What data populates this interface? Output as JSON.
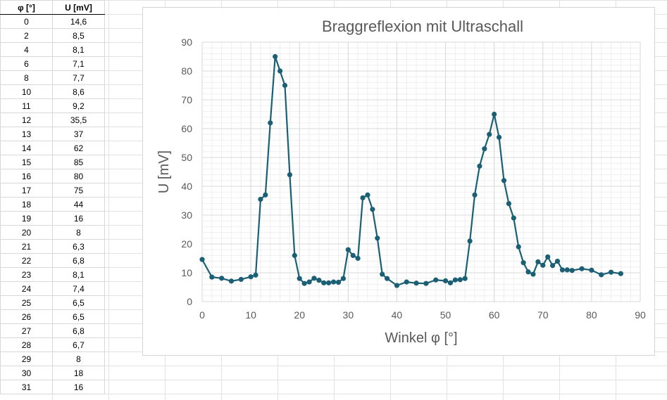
{
  "table": {
    "headers": [
      "φ [°]",
      "U [mV]"
    ],
    "rows": [
      [
        "0",
        "14,6"
      ],
      [
        "2",
        "8,5"
      ],
      [
        "4",
        "8,1"
      ],
      [
        "6",
        "7,1"
      ],
      [
        "8",
        "7,7"
      ],
      [
        "10",
        "8,6"
      ],
      [
        "11",
        "9,2"
      ],
      [
        "12",
        "35,5"
      ],
      [
        "13",
        "37"
      ],
      [
        "14",
        "62"
      ],
      [
        "15",
        "85"
      ],
      [
        "16",
        "80"
      ],
      [
        "17",
        "75"
      ],
      [
        "18",
        "44"
      ],
      [
        "19",
        "16"
      ],
      [
        "20",
        "8"
      ],
      [
        "21",
        "6,3"
      ],
      [
        "22",
        "6,8"
      ],
      [
        "23",
        "8,1"
      ],
      [
        "24",
        "7,4"
      ],
      [
        "25",
        "6,5"
      ],
      [
        "26",
        "6,5"
      ],
      [
        "27",
        "6,8"
      ],
      [
        "28",
        "6,7"
      ],
      [
        "29",
        "8"
      ],
      [
        "30",
        "18"
      ],
      [
        "31",
        "16"
      ]
    ]
  },
  "chart_data": {
    "type": "scatter",
    "mode": "lines+markers",
    "title": "Braggreflexion mit Ultraschall",
    "xlabel": "Winkel φ [°]",
    "ylabel": "U [mV]",
    "xlim": [
      0,
      90
    ],
    "ylim": [
      0,
      90
    ],
    "xticks": [
      0,
      10,
      20,
      30,
      40,
      50,
      60,
      70,
      80,
      90
    ],
    "yticks": [
      0,
      10,
      20,
      30,
      40,
      50,
      60,
      70,
      80,
      90
    ],
    "grid": true,
    "minor_grid": true,
    "color": "#1b5f75",
    "series": [
      {
        "x": [
          0,
          2,
          4,
          6,
          8,
          10,
          11,
          12,
          13,
          14,
          15,
          16,
          17,
          18,
          19,
          20,
          21,
          22,
          23,
          24,
          25,
          26,
          27,
          28,
          29,
          30,
          31,
          32,
          33,
          34,
          35,
          36,
          37,
          38,
          40,
          42,
          44,
          46,
          48,
          50,
          51,
          52,
          53,
          54,
          55,
          56,
          57,
          58,
          59,
          60,
          61,
          62,
          63,
          64,
          65,
          66,
          67,
          68,
          69,
          70,
          71,
          72,
          73,
          74,
          75,
          76,
          78,
          80,
          82,
          84,
          86
        ],
        "y": [
          14.6,
          8.5,
          8.1,
          7.1,
          7.7,
          8.6,
          9.2,
          35.5,
          37,
          62,
          85,
          80,
          75,
          44,
          16,
          8,
          6.3,
          6.8,
          8.1,
          7.4,
          6.5,
          6.5,
          6.8,
          6.7,
          8,
          18,
          16,
          15,
          36,
          37,
          32,
          22,
          9.5,
          8,
          5.6,
          6.8,
          6.4,
          6.3,
          7.5,
          7.2,
          6.5,
          7.5,
          7.6,
          8,
          21,
          37,
          47,
          53,
          58,
          65,
          57,
          42,
          34,
          29,
          19,
          13.5,
          10.3,
          9.5,
          13.8,
          12.6,
          15.5,
          12.5,
          14,
          11,
          11,
          10.8,
          11.4,
          10.9,
          9.3,
          10.2,
          9.7
        ]
      }
    ]
  }
}
